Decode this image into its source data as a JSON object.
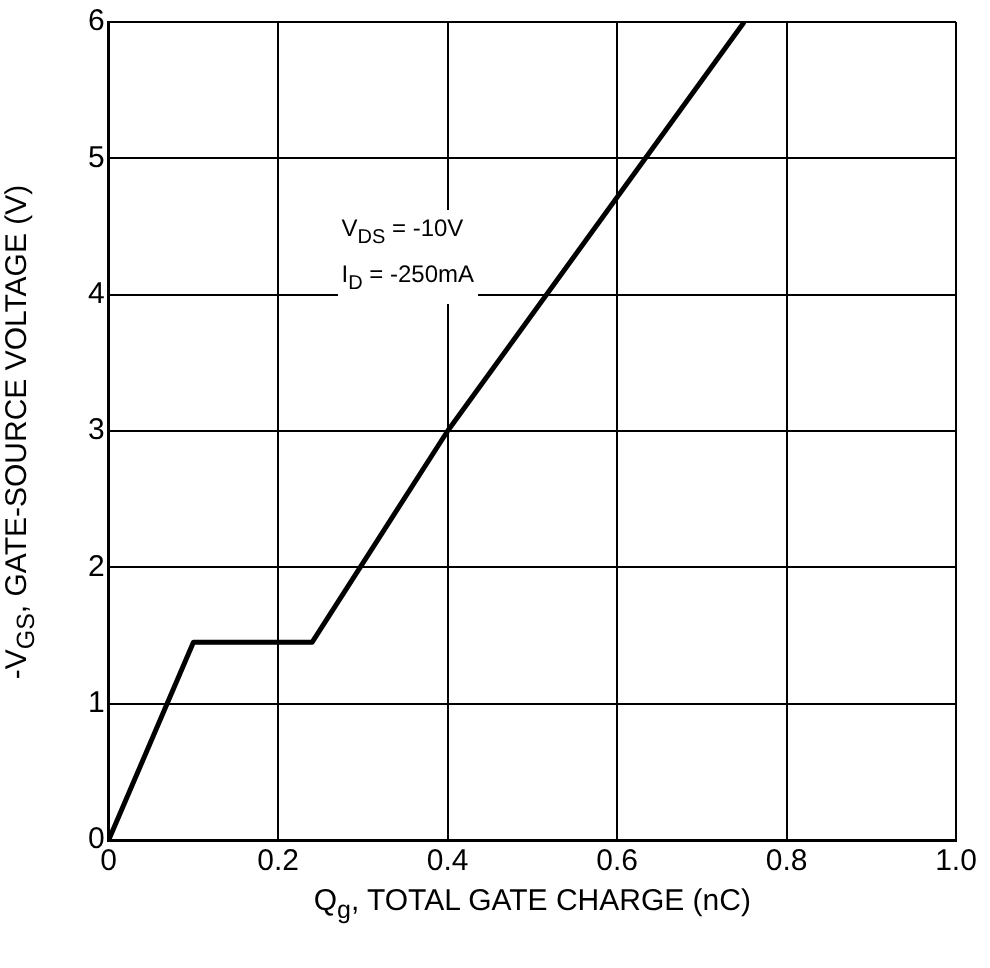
{
  "chart_data": {
    "type": "line",
    "xlabel": "Q$_{g}$, TOTAL GATE CHARGE (nC)",
    "ylabel": "-V$_{GS}$, GATE-SOURCE VOLTAGE (V)",
    "annotations": [
      "V$_{DS}$ = -10V",
      "I$_{D}$ = -250mA"
    ],
    "series": [
      {
        "color": "#000000",
        "x": [
          0,
          0.1,
          0.24,
          0.4,
          0.75
        ],
        "values": [
          0,
          1.45,
          1.45,
          3,
          6
        ]
      }
    ],
    "xlim": [
      0,
      1
    ],
    "xticks": [
      0,
      0.2,
      0.4,
      0.6,
      0.8,
      {
        "value": 1,
        "label": "1.0"
      }
    ],
    "ylim": [
      0,
      6
    ],
    "yticks": [
      0,
      1,
      2,
      3,
      4,
      5,
      6
    ],
    "grid": true,
    "legend": false,
    "marker": "none",
    "line_style": "solid"
  }
}
